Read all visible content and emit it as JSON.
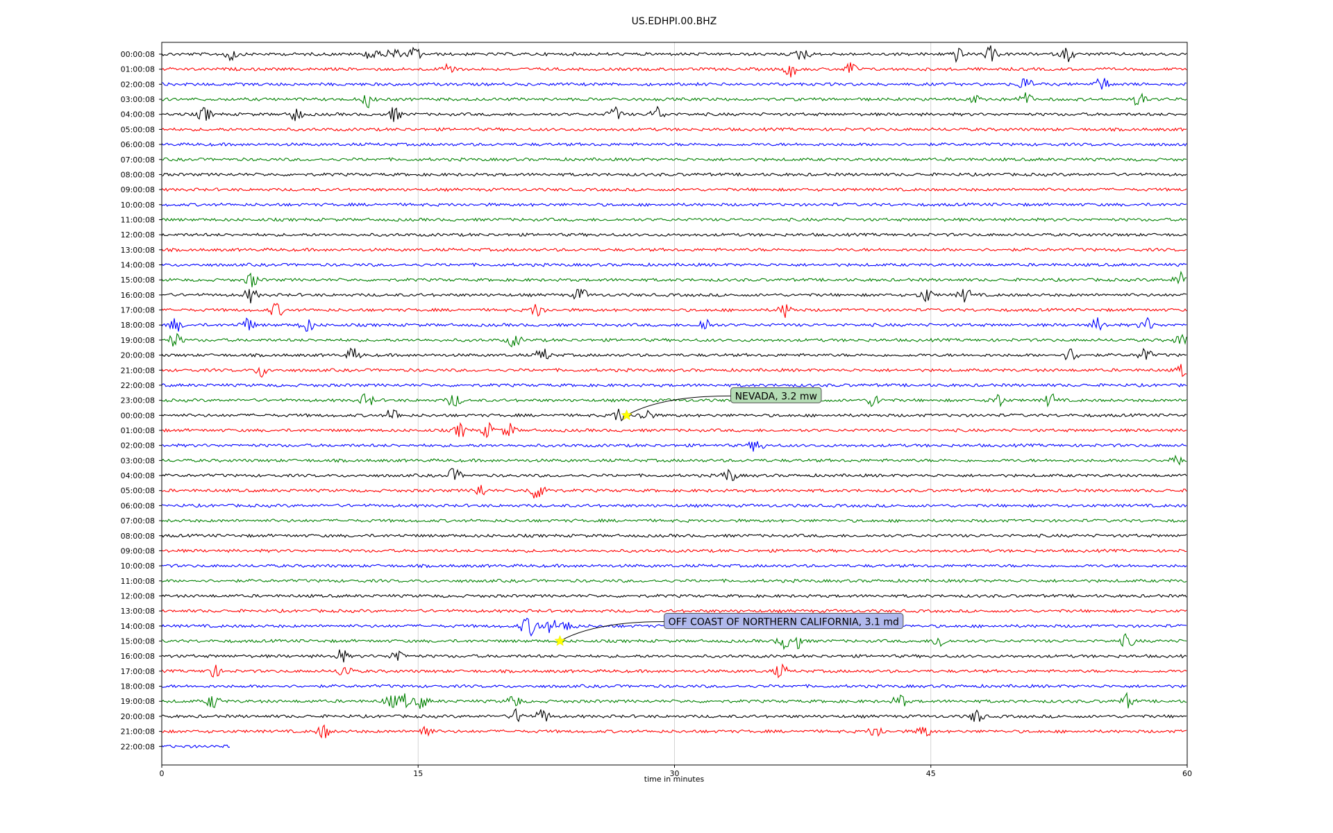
{
  "chart_data": {
    "type": "line",
    "title": "US.EDHPI.00.BHZ",
    "xlabel": "time in minutes",
    "ylabel": "",
    "xlim": [
      0,
      60
    ],
    "x_ticks": [
      0,
      15,
      30,
      45,
      60
    ],
    "grid": "vertical",
    "colors": [
      "#000000",
      "#ff0000",
      "#0000ff",
      "#008000"
    ],
    "row_labels": [
      "00:00:08",
      "01:00:08",
      "02:00:08",
      "03:00:08",
      "04:00:08",
      "05:00:08",
      "06:00:08",
      "07:00:08",
      "08:00:08",
      "09:00:08",
      "10:00:08",
      "11:00:08",
      "12:00:08",
      "13:00:08",
      "14:00:08",
      "15:00:08",
      "16:00:08",
      "17:00:08",
      "18:00:08",
      "19:00:08",
      "20:00:08",
      "21:00:08",
      "22:00:08",
      "23:00:08",
      "00:00:08",
      "01:00:08",
      "02:00:08",
      "03:00:08",
      "04:00:08",
      "05:00:08",
      "06:00:08",
      "07:00:08",
      "08:00:08",
      "09:00:08",
      "10:00:08",
      "11:00:08",
      "12:00:08",
      "13:00:08",
      "14:00:08",
      "15:00:08",
      "16:00:08",
      "17:00:08",
      "18:00:08",
      "19:00:08",
      "20:00:08",
      "21:00:08",
      "22:00:08"
    ],
    "last_row_end_minute": 4,
    "events": [
      {
        "row": 0,
        "minutes": [
          4,
          12.3,
          13.5,
          14.8,
          37.5,
          46.5,
          48.5,
          53
        ]
      },
      {
        "row": 1,
        "minutes": [
          16.8,
          36.8,
          40.3
        ]
      },
      {
        "row": 2,
        "minutes": [
          50.5,
          55
        ]
      },
      {
        "row": 3,
        "minutes": [
          12.1,
          47.8,
          50.5,
          57.2
        ]
      },
      {
        "row": 4,
        "minutes": [
          2.5,
          7.8,
          13.6,
          26.5,
          29
        ]
      },
      {
        "row": 15,
        "minutes": [
          5.3,
          59.6
        ]
      },
      {
        "row": 16,
        "minutes": [
          5.2,
          24.5,
          44.7,
          47
        ]
      },
      {
        "row": 17,
        "minutes": [
          6.7,
          22,
          36.5
        ]
      },
      {
        "row": 18,
        "minutes": [
          0.8,
          5,
          8.5,
          31.8,
          54.8,
          57.6
        ]
      },
      {
        "row": 19,
        "minutes": [
          0.8,
          20.6,
          59.7
        ]
      },
      {
        "row": 20,
        "minutes": [
          11.2,
          22.3,
          53.2,
          57.5
        ]
      },
      {
        "row": 21,
        "minutes": [
          5.9,
          59.8
        ]
      },
      {
        "row": 23,
        "minutes": [
          12,
          17.1,
          41.7,
          48.9,
          52
        ]
      },
      {
        "row": 24,
        "minutes": [
          13.5,
          26.8,
          28.3
        ]
      },
      {
        "row": 25,
        "minutes": [
          17.5,
          19.1,
          20.3
        ]
      },
      {
        "row": 26,
        "minutes": [
          34.8
        ]
      },
      {
        "row": 27,
        "minutes": [
          59.2
        ]
      },
      {
        "row": 28,
        "minutes": [
          17.1,
          33.2
        ]
      },
      {
        "row": 29,
        "minutes": [
          18.6,
          21.8,
          22.4
        ]
      },
      {
        "row": 38,
        "minutes": [
          21.3,
          21.8,
          22.8,
          23.8
        ]
      },
      {
        "row": 39,
        "minutes": [
          36.4,
          37.2,
          45.5,
          56.5
        ]
      },
      {
        "row": 40,
        "minutes": [
          10.5,
          13.8
        ]
      },
      {
        "row": 41,
        "minutes": [
          3,
          10.7,
          36.2
        ]
      },
      {
        "row": 43,
        "minutes": [
          3,
          13.4,
          14.2,
          15.2,
          20.6,
          43.2,
          56.5
        ]
      },
      {
        "row": 44,
        "minutes": [
          20.8,
          22.3,
          47.7
        ]
      },
      {
        "row": 45,
        "minutes": [
          9.5,
          15.4,
          41.8,
          44.6
        ]
      }
    ],
    "annotations": [
      {
        "text": "NEVADA, 3.2 mw",
        "row": 24,
        "minute": 27.2,
        "box_color": "#b4dcb4"
      },
      {
        "text": "OFF COAST OF NORTHERN CALIFORNIA, 3.1 md",
        "row": 39,
        "minute": 23.3,
        "box_color": "#b0b8ec"
      }
    ]
  }
}
